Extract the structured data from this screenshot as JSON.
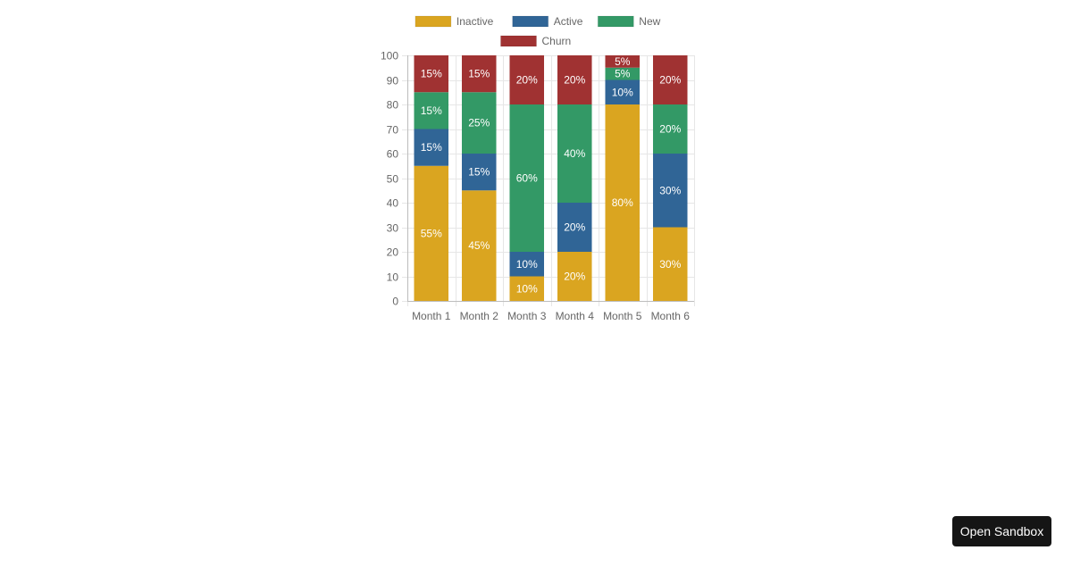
{
  "chart_data": {
    "type": "bar",
    "stacked": true,
    "categories": [
      "Month 1",
      "Month 2",
      "Month 3",
      "Month 4",
      "Month 5",
      "Month 6"
    ],
    "series": [
      {
        "name": "Inactive",
        "color": "#daa520",
        "values": [
          55,
          45,
          10,
          20,
          80,
          30
        ]
      },
      {
        "name": "Active",
        "color": "#306596",
        "values": [
          15,
          15,
          10,
          20,
          10,
          30
        ]
      },
      {
        "name": "New",
        "color": "#339966",
        "values": [
          15,
          25,
          60,
          40,
          5,
          20
        ]
      },
      {
        "name": "Churn",
        "color": "#a03232",
        "values": [
          15,
          15,
          20,
          20,
          5,
          20
        ]
      }
    ],
    "ylim": [
      0,
      100
    ],
    "yticks": [
      0,
      10,
      20,
      30,
      40,
      50,
      60,
      70,
      80,
      90,
      100
    ],
    "value_suffix": "%",
    "grid": true,
    "legend": "top"
  },
  "sandbox_button": {
    "label": "Open Sandbox"
  }
}
